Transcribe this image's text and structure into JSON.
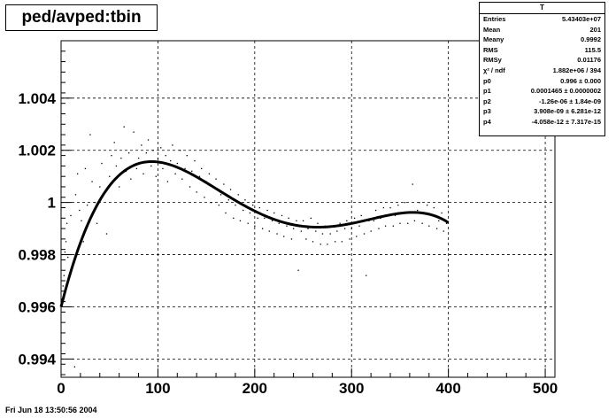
{
  "title": "ped/avped:tbin",
  "stats": {
    "name": "T",
    "rows": [
      {
        "label": "Entries",
        "value": "5.43403e+07"
      },
      {
        "label": "Mean",
        "value": "201"
      },
      {
        "label": "Meany",
        "value": "0.9992"
      },
      {
        "label": "RMS",
        "value": "115.5"
      },
      {
        "label": "RMSy",
        "value": "0.01176"
      },
      {
        "label": "χ² / ndf",
        "value": "1.882e+06 / 394"
      },
      {
        "label": "p0",
        "value": "0.996 ± 0.000"
      },
      {
        "label": "p1",
        "value": "0.0001465 ± 0.0000002"
      },
      {
        "label": "p2",
        "value": "-1.26e-06 ± 1.84e-09"
      },
      {
        "label": "p3",
        "value": "3.908e-09 ± 6.281e-12"
      },
      {
        "label": "p4",
        "value": "-4.058e-12 ± 7.317e-15"
      }
    ]
  },
  "timestamp": "Fri Jun 18 13:50:56 2004",
  "chart_data": {
    "type": "scatter",
    "xlim": [
      0,
      510
    ],
    "ylim": [
      0.9933,
      1.0062
    ],
    "x_ticks": [
      0,
      100,
      200,
      300,
      400,
      500
    ],
    "x_tick_labels": [
      "0",
      "100",
      "200",
      "300",
      "400",
      "500"
    ],
    "y_ticks": [
      0.994,
      0.996,
      0.998,
      1.0,
      1.002,
      1.004
    ],
    "y_tick_labels": [
      "0.994",
      "0.996",
      "0.998",
      "1",
      "1.002",
      "1.004"
    ],
    "grid": true,
    "fit": {
      "function": "pol4",
      "params": [
        0.996,
        0.0001465,
        -1.26e-06,
        3.908e-09,
        -4.058e-12
      ],
      "range": [
        0,
        400
      ]
    },
    "points": [
      [
        1,
        0.9963
      ],
      [
        2,
        0.9968
      ],
      [
        3,
        0.9972
      ],
      [
        4,
        0.9981
      ],
      [
        5,
        0.9985
      ],
      [
        6,
        0.9992
      ],
      [
        7,
        0.9979
      ],
      [
        10,
        0.9995
      ],
      [
        12,
        0.994
      ],
      [
        14,
        0.9937
      ],
      [
        15,
        1.0003
      ],
      [
        17,
        1.0011
      ],
      [
        19,
        0.9997
      ],
      [
        21,
        0.9993
      ],
      [
        23,
        0.9985
      ],
      [
        25,
        1.0013
      ],
      [
        27,
        0.9999
      ],
      [
        30,
        1.0026
      ],
      [
        32,
        1.0008
      ],
      [
        35,
        1.0
      ],
      [
        37,
        0.9992
      ],
      [
        40,
        1.0006
      ],
      [
        42,
        1.0015
      ],
      [
        45,
        1.0004
      ],
      [
        47,
        0.9988
      ],
      [
        50,
        1.001
      ],
      [
        52,
        1.0018
      ],
      [
        55,
        1.0023
      ],
      [
        57,
        1.0014
      ],
      [
        60,
        1.0006
      ],
      [
        62,
        1.0017
      ],
      [
        65,
        1.0029
      ],
      [
        67,
        1.0012
      ],
      [
        70,
        1.0019
      ],
      [
        72,
        1.0009
      ],
      [
        75,
        1.0027
      ],
      [
        78,
        1.0013
      ],
      [
        80,
        1.0017
      ],
      [
        83,
        1.0022
      ],
      [
        85,
        1.0011
      ],
      [
        88,
        1.0019
      ],
      [
        90,
        1.0024
      ],
      [
        93,
        1.0014
      ],
      [
        95,
        1.002
      ],
      [
        98,
        1.001
      ],
      [
        100,
        1.0017
      ],
      [
        103,
        1.0021
      ],
      [
        105,
        1.0013
      ],
      [
        108,
        1.0018
      ],
      [
        110,
        1.0008
      ],
      [
        113,
        1.0016
      ],
      [
        115,
        1.0022
      ],
      [
        118,
        1.0011
      ],
      [
        120,
        1.0015
      ],
      [
        123,
        1.002
      ],
      [
        125,
        1.0009
      ],
      [
        128,
        1.0013
      ],
      [
        130,
        1.0018
      ],
      [
        133,
        1.0006
      ],
      [
        135,
        1.0012
      ],
      [
        138,
        1.0016
      ],
      [
        140,
        1.0004
      ],
      [
        143,
        1.001
      ],
      [
        145,
        1.0013
      ],
      [
        148,
        1.0002
      ],
      [
        150,
        1.0008
      ],
      [
        153,
        1.0011
      ],
      [
        155,
        1.0
      ],
      [
        158,
        1.0006
      ],
      [
        160,
        1.0009
      ],
      [
        163,
        0.9999
      ],
      [
        165,
        1.0003
      ],
      [
        168,
        1.0007
      ],
      [
        170,
        0.9996
      ],
      [
        173,
        1.0001
      ],
      [
        175,
        1.0005
      ],
      [
        178,
        0.9994
      ],
      [
        180,
        0.9999
      ],
      [
        183,
        1.0003
      ],
      [
        185,
        0.9993
      ],
      [
        188,
        0.9997
      ],
      [
        190,
        1.0001
      ],
      [
        193,
        0.9992
      ],
      [
        195,
        0.9996
      ],
      [
        198,
        0.9999
      ],
      [
        200,
        0.9991
      ],
      [
        203,
        0.9994
      ],
      [
        205,
        0.9998
      ],
      [
        208,
        0.999
      ],
      [
        210,
        0.9994
      ],
      [
        213,
        0.9997
      ],
      [
        215,
        0.9989
      ],
      [
        218,
        0.9993
      ],
      [
        220,
        0.9996
      ],
      [
        223,
        0.9988
      ],
      [
        225,
        0.9992
      ],
      [
        228,
        0.9995
      ],
      [
        230,
        0.9987
      ],
      [
        233,
        0.9991
      ],
      [
        235,
        0.9994
      ],
      [
        238,
        0.9986
      ],
      [
        240,
        0.999
      ],
      [
        243,
        0.9993
      ],
      [
        245,
        0.9974
      ],
      [
        248,
        0.9989
      ],
      [
        250,
        0.9993
      ],
      [
        253,
        0.9986
      ],
      [
        255,
        0.999
      ],
      [
        258,
        0.9994
      ],
      [
        260,
        0.9985
      ],
      [
        263,
        0.9989
      ],
      [
        265,
        0.9992
      ],
      [
        268,
        0.9984
      ],
      [
        270,
        0.9988
      ],
      [
        273,
        0.9991
      ],
      [
        275,
        0.9984
      ],
      [
        278,
        0.9988
      ],
      [
        280,
        0.9991
      ],
      [
        283,
        0.9985
      ],
      [
        285,
        0.9989
      ],
      [
        288,
        0.9992
      ],
      [
        290,
        0.9985
      ],
      [
        293,
        0.999
      ],
      [
        295,
        0.9993
      ],
      [
        298,
        0.9986
      ],
      [
        300,
        0.999
      ],
      [
        303,
        0.9994
      ],
      [
        305,
        0.9987
      ],
      [
        308,
        0.9991
      ],
      [
        310,
        0.9995
      ],
      [
        313,
        0.9988
      ],
      [
        315,
        0.9972
      ],
      [
        318,
        0.9993
      ],
      [
        320,
        0.9989
      ],
      [
        323,
        0.9993
      ],
      [
        325,
        0.9997
      ],
      [
        328,
        0.999
      ],
      [
        330,
        0.9994
      ],
      [
        333,
        0.9998
      ],
      [
        335,
        0.9991
      ],
      [
        338,
        0.9995
      ],
      [
        340,
        0.9998
      ],
      [
        343,
        0.9991
      ],
      [
        345,
        0.9995
      ],
      [
        348,
        0.9999
      ],
      [
        350,
        0.9992
      ],
      [
        353,
        0.9996
      ],
      [
        355,
        1.0
      ],
      [
        358,
        0.9992
      ],
      [
        360,
        0.9996
      ],
      [
        363,
        1.0007
      ],
      [
        365,
        0.9993
      ],
      [
        368,
        0.9997
      ],
      [
        370,
        1.0
      ],
      [
        373,
        0.9992
      ],
      [
        375,
        0.9996
      ],
      [
        378,
        0.9999
      ],
      [
        380,
        0.9991
      ],
      [
        383,
        0.9995
      ],
      [
        385,
        0.9998
      ],
      [
        388,
        0.999
      ],
      [
        390,
        0.9993
      ],
      [
        393,
        0.9996
      ],
      [
        395,
        0.9989
      ],
      [
        398,
        0.9992
      ]
    ]
  }
}
